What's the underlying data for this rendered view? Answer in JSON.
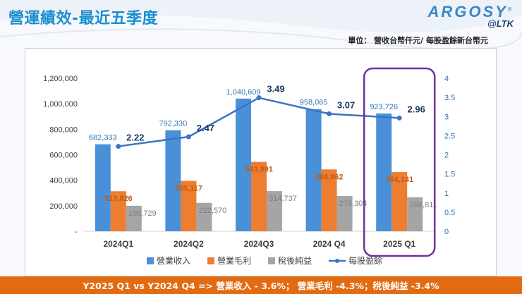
{
  "header": {
    "title": "營運績效-最近五季度",
    "unit": "單位： 營收台幣仟元/ 每股盈餘新台幣元"
  },
  "logo": {
    "brand": "ARGOSY",
    "mark": "®",
    "sub": "@LTK"
  },
  "footer": {
    "text": "Y2025 Q1 vs Y2024 Q4 => 營業收入 - 3.6%； 營業毛利 -4.3%；稅後純益 -3.4%"
  },
  "colors": {
    "revenue": "#4a90d9",
    "gross": "#ed7d31",
    "net": "#a5a5a5",
    "eps": "#3a74c4",
    "highlight": "#7030a0"
  },
  "chart_data": {
    "type": "bar",
    "categories": [
      "2024Q1",
      "2024Q2",
      "2024Q3",
      "2024 Q4",
      "2025 Q1"
    ],
    "series": [
      {
        "name": "營業收入",
        "axis": "left",
        "values": [
          682333,
          792330,
          1040609,
          958065,
          923726
        ],
        "labels": [
          "682,333",
          "792,330",
          "1,040,609",
          "958,065",
          "923,726"
        ]
      },
      {
        "name": "營業毛利",
        "axis": "left",
        "values": [
          313826,
          395117,
          543991,
          484862,
          464141
        ],
        "labels": [
          "313,826",
          "395,117",
          "543,991",
          "484,862",
          "464,141"
        ]
      },
      {
        "name": "稅後純益",
        "axis": "left",
        "values": [
          199729,
          222570,
          314737,
          276304,
          266811
        ],
        "labels": [
          "199,729",
          "222,570",
          "314,737",
          "276,304",
          "266,811"
        ]
      },
      {
        "name": "每股盈餘",
        "axis": "right",
        "type": "line",
        "values": [
          2.22,
          2.47,
          3.49,
          3.07,
          2.96
        ],
        "labels": [
          "2.22",
          "2.47",
          "3.49",
          "3.07",
          "2.96"
        ]
      }
    ],
    "ylim": [
      0,
      1200000
    ],
    "y_ticks": [
      "-",
      "200,000",
      "400,000",
      "600,000",
      "800,000",
      "1,000,000",
      "1,200,000"
    ],
    "y2lim": [
      0,
      4
    ],
    "y2_ticks": [
      "0",
      "0.5",
      "1",
      "1.5",
      "2",
      "2.5",
      "3",
      "3.5",
      "4"
    ],
    "highlight_category": "2025 Q1",
    "legend_position": "bottom",
    "grid": false
  }
}
